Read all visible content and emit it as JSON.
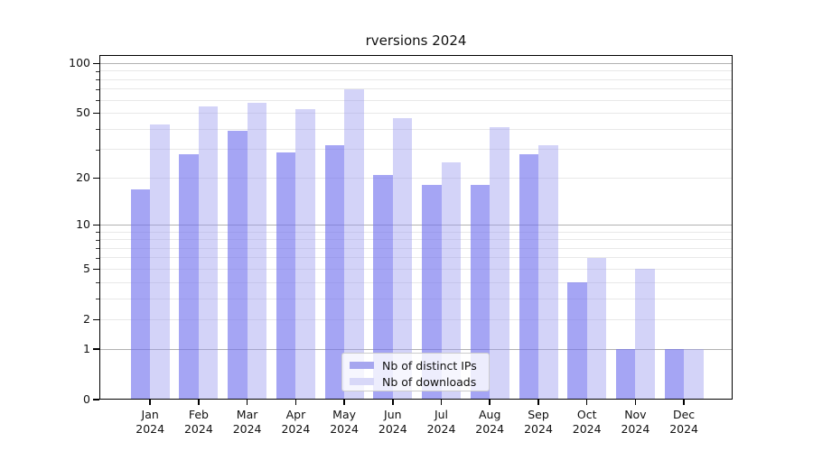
{
  "figure": {
    "title": "rversions 2024",
    "background_color": "#ffffff"
  },
  "chart_data": {
    "type": "bar",
    "title": "rversions 2024",
    "xlabel": "",
    "ylabel": "",
    "x_tick_labels": [
      "Jan\n2024",
      "Feb\n2024",
      "Mar\n2024",
      "Apr\n2024",
      "May\n2024",
      "Jun\n2024",
      "Jul\n2024",
      "Aug\n2024",
      "Sep\n2024",
      "Oct\n2024",
      "Nov\n2024",
      "Dec\n2024"
    ],
    "series": [
      {
        "name": "Nb of distinct IPs",
        "values": [
          17,
          28,
          39,
          29,
          32,
          21,
          18,
          18,
          28,
          4,
          1,
          1
        ],
        "bar_color": "rgba(112,112,238,0.63)",
        "legend_color": "#a6a6ef"
      },
      {
        "name": "Nb of downloads",
        "values": [
          43,
          55,
          58,
          53,
          70,
          47,
          25,
          41,
          32,
          6,
          5,
          1
        ],
        "bar_color": "rgba(155,155,240,0.44)",
        "legend_color": "#d8d8f8"
      }
    ],
    "y_axis": {
      "scale": "log1p",
      "ticks": [
        0,
        1,
        2,
        5,
        10,
        20,
        50,
        100
      ],
      "minor_ticks": [
        3,
        4,
        6,
        7,
        8,
        9,
        30,
        40,
        60,
        70,
        80,
        90
      ],
      "ylim": [
        0,
        100
      ]
    },
    "grid": true,
    "major_grid_color": "#b1b1b1",
    "minor_grid_color": "#e8e8e8",
    "legend_position": "lower center"
  }
}
